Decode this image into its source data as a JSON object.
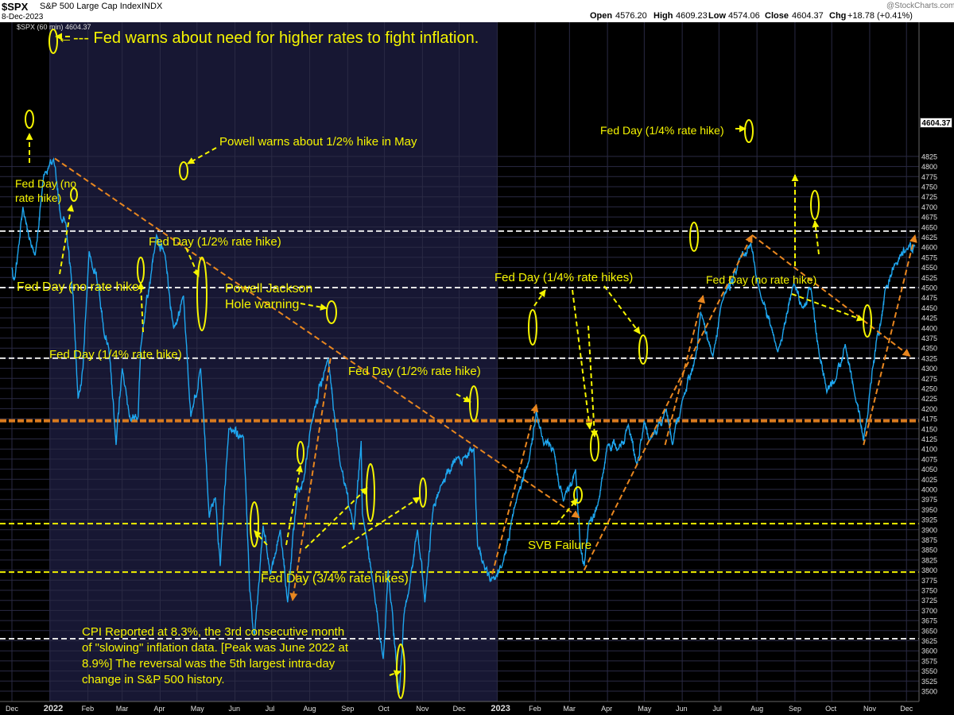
{
  "header": {
    "symbol": "$SPX",
    "description": "S&P 500 Large Cap Index",
    "exchange": "INDX",
    "date": "8-Dec-2023",
    "watermark": "@StockCharts.com",
    "legend": "$SPX (60 min) 4604.37",
    "open_label": "Open",
    "open": "4576.20",
    "high_label": "High",
    "high": "4609.23",
    "low_label": "Low",
    "low": "4574.06",
    "close_label": "Close",
    "close": "4604.37",
    "chg_label": "Chg",
    "chg": "+18.78 (+0.41%)"
  },
  "price_label": "4604.37",
  "colors": {
    "background": "#000000",
    "panel_dark": "#171733",
    "panel_mid": "#0c0c1c",
    "price_line": "#1ea6ef",
    "annotation_text": "#f5f500",
    "trend_line": "#e8861f",
    "support_yellow": "#f0f000",
    "level_white": "#e6e6e6",
    "level_orange": "#d97a1e"
  },
  "chart_data": {
    "type": "line",
    "title": "$SPX S&P 500 Large Cap Index INDX",
    "ylim": [
      3490,
      4830
    ],
    "y_ticks": [
      3500,
      3525,
      3550,
      3575,
      3600,
      3625,
      3650,
      3675,
      3700,
      3725,
      3750,
      3775,
      3800,
      3825,
      3850,
      3875,
      3900,
      3925,
      3950,
      3975,
      4000,
      4025,
      4050,
      4075,
      4100,
      4125,
      4150,
      4175,
      4200,
      4225,
      4250,
      4275,
      4300,
      4325,
      4350,
      4375,
      4400,
      4425,
      4450,
      4475,
      4500,
      4525,
      4550,
      4575,
      4600,
      4625,
      4650,
      4675,
      4700,
      4725,
      4750,
      4775,
      4800,
      4825
    ],
    "x_ticks": [
      "Dec",
      "2022",
      "Feb",
      "Mar",
      "Apr",
      "May",
      "Jun",
      "Jul",
      "Aug",
      "Sep",
      "Oct",
      "Nov",
      "Dec",
      "2023",
      "Feb",
      "Mar",
      "Apr",
      "May",
      "Jun",
      "Jul",
      "Aug",
      "Sep",
      "Oct",
      "Nov",
      "Dec"
    ],
    "series": [
      {
        "values": [
          [
            "2021-12-01",
            4550
          ],
          [
            "2021-12-03",
            4520
          ],
          [
            "2021-12-06",
            4590
          ],
          [
            "2021-12-10",
            4700
          ],
          [
            "2021-12-15",
            4620
          ],
          [
            "2021-12-20",
            4580
          ],
          [
            "2021-12-27",
            4780
          ],
          [
            "2022-01-04",
            4818
          ],
          [
            "2022-01-10",
            4670
          ],
          [
            "2022-01-14",
            4660
          ],
          [
            "2022-01-20",
            4480
          ],
          [
            "2022-01-24",
            4225
          ],
          [
            "2022-01-28",
            4300
          ],
          [
            "2022-02-02",
            4590
          ],
          [
            "2022-02-10",
            4500
          ],
          [
            "2022-02-14",
            4390
          ],
          [
            "2022-02-18",
            4350
          ],
          [
            "2022-02-24",
            4110
          ],
          [
            "2022-03-01",
            4300
          ],
          [
            "2022-03-08",
            4170
          ],
          [
            "2022-03-14",
            4180
          ],
          [
            "2022-03-16",
            4350
          ],
          [
            "2022-03-29",
            4630
          ],
          [
            "2022-04-05",
            4580
          ],
          [
            "2022-04-12",
            4400
          ],
          [
            "2022-04-20",
            4480
          ],
          [
            "2022-04-26",
            4180
          ],
          [
            "2022-05-04",
            4300
          ],
          [
            "2022-05-11",
            3930
          ],
          [
            "2022-05-16",
            3980
          ],
          [
            "2022-05-20",
            3810
          ],
          [
            "2022-05-27",
            4150
          ],
          [
            "2022-06-08",
            4130
          ],
          [
            "2022-06-13",
            3750
          ],
          [
            "2022-06-17",
            3640
          ],
          [
            "2022-06-24",
            3910
          ],
          [
            "2022-06-30",
            3790
          ],
          [
            "2022-07-08",
            3900
          ],
          [
            "2022-07-14",
            3720
          ],
          [
            "2022-07-22",
            4000
          ],
          [
            "2022-07-27",
            4020
          ],
          [
            "2022-08-02",
            4160
          ],
          [
            "2022-08-16",
            4325
          ],
          [
            "2022-08-26",
            4060
          ],
          [
            "2022-09-06",
            3900
          ],
          [
            "2022-09-12",
            4120
          ],
          [
            "2022-09-13",
            3940
          ],
          [
            "2022-09-22",
            3760
          ],
          [
            "2022-09-30",
            3580
          ],
          [
            "2022-10-04",
            3800
          ],
          [
            "2022-10-13",
            3495
          ],
          [
            "2022-10-17",
            3690
          ],
          [
            "2022-10-21",
            3750
          ],
          [
            "2022-10-28",
            3900
          ],
          [
            "2022-11-03",
            3720
          ],
          [
            "2022-11-10",
            3960
          ],
          [
            "2022-11-16",
            4010
          ],
          [
            "2022-11-30",
            4080
          ],
          [
            "2022-12-05",
            4080
          ],
          [
            "2022-12-13",
            4100
          ],
          [
            "2022-12-16",
            3860
          ],
          [
            "2022-12-22",
            3800
          ],
          [
            "2022-12-28",
            3780
          ],
          [
            "2023-01-05",
            3810
          ],
          [
            "2023-01-18",
            3990
          ],
          [
            "2023-01-27",
            4070
          ],
          [
            "2023-02-02",
            4195
          ],
          [
            "2023-02-08",
            4110
          ],
          [
            "2023-02-16",
            4100
          ],
          [
            "2023-02-24",
            3970
          ],
          [
            "2023-03-06",
            4050
          ],
          [
            "2023-03-10",
            3850
          ],
          [
            "2023-03-13",
            3810
          ],
          [
            "2023-03-17",
            3920
          ],
          [
            "2023-03-24",
            3960
          ],
          [
            "2023-04-01",
            4110
          ],
          [
            "2023-04-10",
            4100
          ],
          [
            "2023-04-18",
            4160
          ],
          [
            "2023-04-25",
            4060
          ],
          [
            "2023-05-01",
            4170
          ],
          [
            "2023-05-05",
            4120
          ],
          [
            "2023-05-19",
            4200
          ],
          [
            "2023-05-24",
            4110
          ],
          [
            "2023-06-01",
            4220
          ],
          [
            "2023-06-12",
            4330
          ],
          [
            "2023-06-16",
            4440
          ],
          [
            "2023-06-26",
            4330
          ],
          [
            "2023-07-03",
            4460
          ],
          [
            "2023-07-19",
            4580
          ],
          [
            "2023-07-27",
            4610
          ],
          [
            "2023-08-04",
            4480
          ],
          [
            "2023-08-18",
            4340
          ],
          [
            "2023-08-31",
            4510
          ],
          [
            "2023-09-07",
            4450
          ],
          [
            "2023-09-14",
            4500
          ],
          [
            "2023-09-21",
            4330
          ],
          [
            "2023-09-27",
            4240
          ],
          [
            "2023-10-04",
            4270
          ],
          [
            "2023-10-12",
            4360
          ],
          [
            "2023-10-20",
            4230
          ],
          [
            "2023-10-27",
            4120
          ],
          [
            "2023-11-01",
            4240
          ],
          [
            "2023-11-07",
            4380
          ],
          [
            "2023-11-10",
            4410
          ],
          [
            "2023-11-14",
            4500
          ],
          [
            "2023-11-22",
            4560
          ],
          [
            "2023-12-01",
            4595
          ],
          [
            "2023-12-08",
            4604.37
          ]
        ]
      }
    ],
    "horizontal_levels": [
      {
        "y": 4640,
        "color": "#e6e6e6",
        "style": "dashed"
      },
      {
        "y": 4500,
        "color": "#e6e6e6",
        "style": "dashed"
      },
      {
        "y": 4325,
        "color": "#e6e6e6",
        "style": "dashed"
      },
      {
        "y": 4170,
        "color": "#d97a1e",
        "style": "dashed-thick"
      },
      {
        "y": 3915,
        "color": "#f0f000",
        "style": "dashed"
      },
      {
        "y": 3795,
        "color": "#f0f000",
        "style": "dashed"
      },
      {
        "y": 3630,
        "color": "#e6e6e6",
        "style": "dashed"
      }
    ],
    "trend_lines": [
      {
        "from": [
          "2022-01-05",
          4820
        ],
        "to": [
          "2023-03-09",
          3930
        ]
      },
      {
        "from": [
          "2022-08-18",
          4325
        ],
        "to": [
          "2022-07-18",
          3725
        ]
      },
      {
        "from": [
          "2022-12-28",
          3790
        ],
        "to": [
          "2023-02-02",
          4210
        ]
      },
      {
        "from": [
          "2023-03-13",
          3800
        ],
        "to": [
          "2023-07-28",
          4630
        ]
      },
      {
        "from": [
          "2023-05-18",
          4110
        ],
        "to": [
          "2023-06-18",
          4480
        ]
      },
      {
        "from": [
          "2023-07-28",
          4630
        ],
        "to": [
          "2023-12-04",
          4330
        ]
      },
      {
        "from": [
          "2023-10-27",
          4110
        ],
        "to": [
          "2023-12-08",
          4630
        ]
      }
    ],
    "annotations": [
      {
        "text": "←--- Fed warns about need for higher rates to fight inflation."
      },
      {
        "text": "Powell warns about 1/2% hike in May"
      },
      {
        "lines": [
          "Fed Day (no",
          "rate hike)"
        ]
      },
      {
        "text": "Fed Day (1/2% rate hike)"
      },
      {
        "text": "Fed Day (no rate hike)"
      },
      {
        "lines": [
          "Powell Jackson",
          "Hole warning"
        ]
      },
      {
        "text": "Fed Day (1/4% rate hike)"
      },
      {
        "text": "Fed Day (1/2% rate hike)"
      },
      {
        "text": "Fed Day (1/4% rate hikes)"
      },
      {
        "text": "SVB Failure"
      },
      {
        "text": "Fed Day (3/4% rate hikes)"
      },
      {
        "lines": [
          "CPI Reported at 8.3%, the 3rd consecutive month",
          "of \"slowing\" inflation data. [Peak was June 2022 at",
          "8.9%] The reversal was the 5th largest intra-day",
          "change in S&P 500 history."
        ]
      },
      {
        "text": "Fed Day (1/4% rate hike)"
      },
      {
        "text": "Fed Day (no rate hike)"
      }
    ]
  }
}
